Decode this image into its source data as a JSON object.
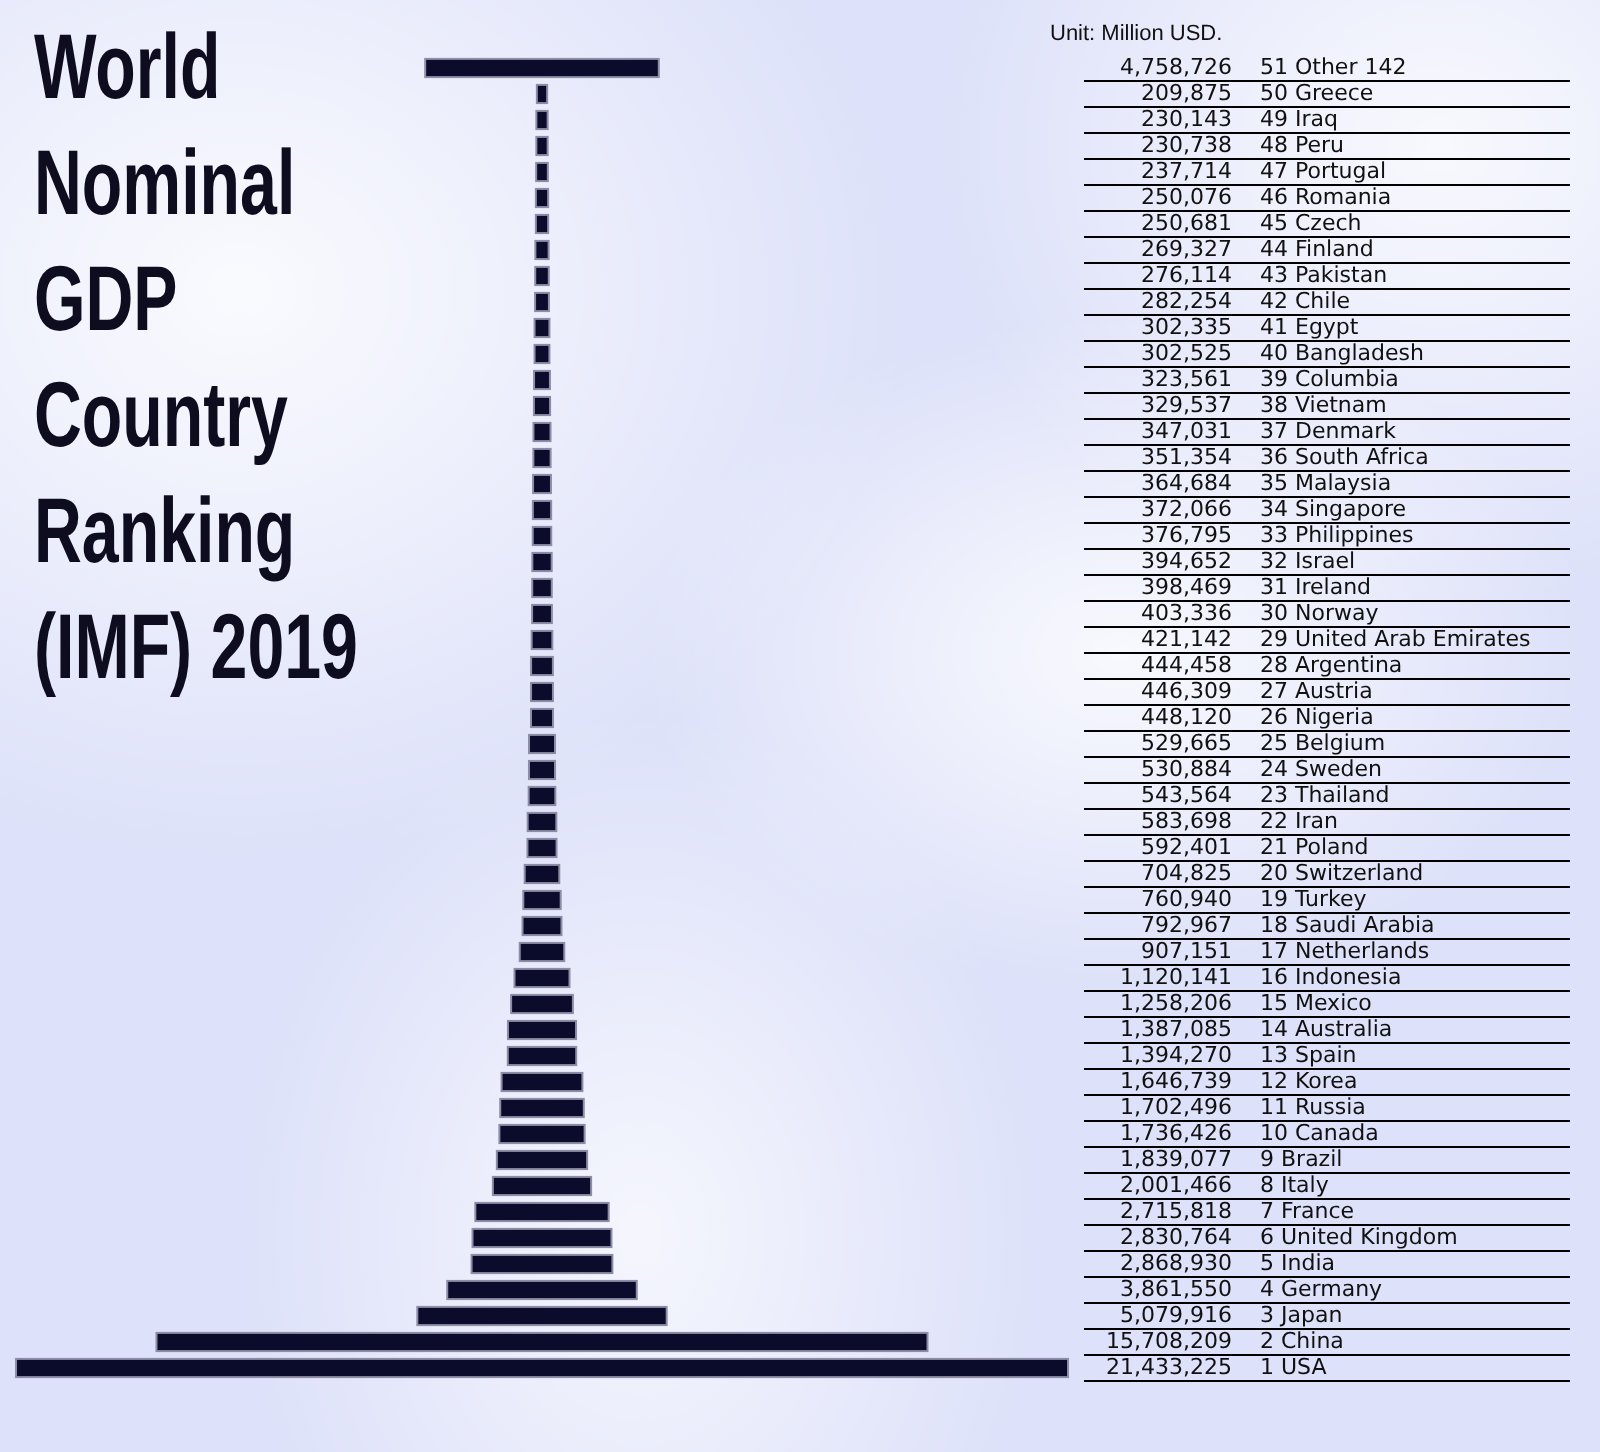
{
  "chart_data": {
    "type": "other",
    "title": "World Nominal GDP Country Ranking (IMF) 2019",
    "annotations": [
      "Unit: Million USD."
    ],
    "categories": [
      "51 Other 142",
      "50 Greece",
      "49 Iraq",
      "48 Peru",
      "47 Portugal",
      "46 Romania",
      "45 Czech",
      "44 Finland",
      "43 Pakistan",
      "42 Chile",
      "41 Egypt",
      "40 Bangladesh",
      "39 Columbia",
      "38 Vietnam",
      "37 Denmark",
      "36 South Africa",
      "35 Malaysia",
      "34 Singapore",
      "33 Philippines",
      "32 Israel",
      "31 Ireland",
      "30 Norway",
      "29 United Arab Emirates",
      "28 Argentina",
      "27 Austria",
      "26 Nigeria",
      "25 Belgium",
      "24 Sweden",
      "23 Thailand",
      "22 Iran",
      "21 Poland",
      "20 Switzerland",
      "19 Turkey",
      "18 Saudi Arabia",
      "17 Netherlands",
      "16 Indonesia",
      "15 Mexico",
      "14 Australia",
      "13 Spain",
      "12 Korea",
      "11 Russia",
      "10 Canada",
      "9 Brazil",
      "8 Italy",
      "7 France",
      "6 United Kingdom",
      "5 India",
      "4 Germany",
      "3 Japan",
      "2 China",
      "1 USA"
    ],
    "values": [
      4758726,
      209875,
      230143,
      230738,
      237714,
      250076,
      250681,
      269327,
      276114,
      282254,
      302335,
      302525,
      323561,
      329537,
      347031,
      351354,
      364684,
      372066,
      376795,
      394652,
      398469,
      403336,
      421142,
      444458,
      446309,
      448120,
      529665,
      530884,
      543564,
      583698,
      592401,
      704825,
      760940,
      792967,
      907151,
      1120141,
      1258206,
      1387085,
      1394270,
      1646739,
      1702496,
      1736426,
      1839077,
      2001466,
      2715818,
      2830764,
      2868930,
      3861550,
      5079916,
      15708209,
      21433225
    ],
    "value_labels": [
      "4,758,726",
      "209,875",
      "230,143",
      "230,738",
      "237,714",
      "250,076",
      "250,681",
      "269,327",
      "276,114",
      "282,254",
      "302,335",
      "302,525",
      "323,561",
      "329,537",
      "347,031",
      "351,354",
      "364,684",
      "372,066",
      "376,795",
      "394,652",
      "398,469",
      "403,336",
      "421,142",
      "444,458",
      "446,309",
      "448,120",
      "529,665",
      "530,884",
      "543,564",
      "583,698",
      "592,401",
      "704,825",
      "760,940",
      "792,967",
      "907,151",
      "1,120,141",
      "1,258,206",
      "1,387,085",
      "1,394,270",
      "1,646,739",
      "1,702,496",
      "1,736,426",
      "1,839,077",
      "2,001,466",
      "2,715,818",
      "2,830,764",
      "2,868,930",
      "3,861,550",
      "5,079,916",
      "15,708,209",
      "21,433,225"
    ],
    "color": "#0b0b2c"
  }
}
